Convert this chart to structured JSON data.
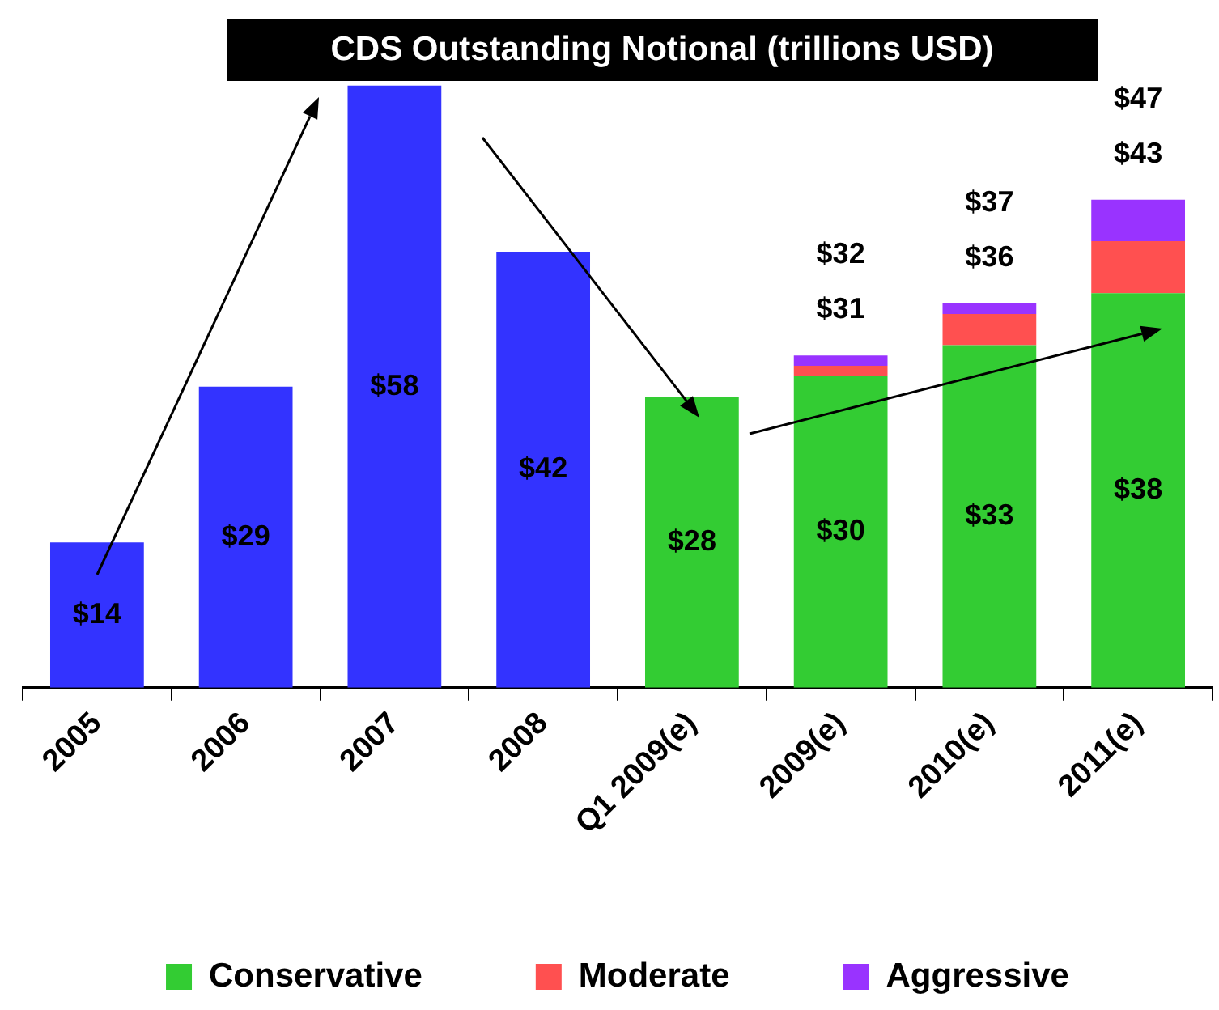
{
  "chart_data": {
    "type": "bar",
    "title": "CDS Outstanding Notional (trillions USD)",
    "stacked": true,
    "legend": "bottom",
    "tick_labels": "x",
    "categories": [
      "2005",
      "2006",
      "2007",
      "2008",
      "Q1 2009(e)",
      "2009(e)",
      "2010(e)",
      "2011(e)"
    ],
    "series": [
      {
        "color": "#3333ff",
        "values": [
          14,
          29,
          58,
          42,
          null,
          null,
          null,
          null
        ],
        "value_labels": [
          "$14",
          "$29",
          "$58",
          "$42",
          null,
          null,
          null,
          null
        ]
      },
      {
        "name": "Conservative",
        "color": "#33cc33",
        "values": [
          null,
          null,
          null,
          null,
          28,
          30,
          33,
          38
        ],
        "value_labels": [
          null,
          null,
          null,
          null,
          "$28",
          "$30",
          "$33",
          "$38"
        ]
      },
      {
        "name": "Moderate",
        "color": "#ff5050",
        "values": [
          null,
          null,
          null,
          null,
          null,
          1,
          3,
          5
        ]
      },
      {
        "name": "Aggressive",
        "color": "#9933ff",
        "values": [
          null,
          null,
          null,
          null,
          null,
          1,
          1,
          4
        ]
      }
    ],
    "annotations": [
      {
        "text": "$32",
        "x": "2009(e)",
        "y": 32
      },
      {
        "text": "$31",
        "x": "2009(e)",
        "y": 31
      },
      {
        "text": "$37",
        "x": "2010(e)",
        "y": 37
      },
      {
        "text": "$36",
        "x": "2010(e)",
        "y": 36
      },
      {
        "text": "$47",
        "x": "2011(e)",
        "y": 47
      },
      {
        "text": "$43",
        "x": "2011(e)",
        "y": 43
      }
    ]
  }
}
